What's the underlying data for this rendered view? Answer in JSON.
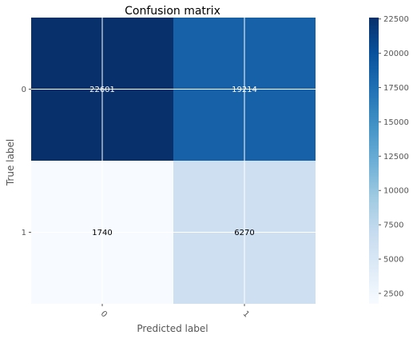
{
  "chart_data": {
    "type": "heatmap",
    "title": "Confusion matrix",
    "xlabel": "Predicted label",
    "ylabel": "True label",
    "x_categories": [
      "0",
      "1"
    ],
    "y_categories": [
      "0",
      "1"
    ],
    "values": [
      [
        22601,
        19214
      ],
      [
        1740,
        6270
      ]
    ],
    "colormap": "Blues",
    "vmin": 1740,
    "vmax": 22601,
    "grid": true,
    "x_tick_rotation": 45,
    "colorbar": {
      "ticks": [
        2500,
        5000,
        7500,
        10000,
        12500,
        15000,
        17500,
        20000,
        22500
      ],
      "tick_labels": [
        "2500",
        "5000",
        "7500",
        "10000",
        "12500",
        "15000",
        "17500",
        "20000",
        "22500"
      ]
    },
    "colors": {
      "cell_0_0": "#08306b",
      "cell_0_1": "#1761a8",
      "cell_1_0": "#f7fbff",
      "cell_1_1": "#cddff1",
      "grid": "#ffffff",
      "text_on_dark": "#ffffff",
      "text_on_light": "#000000"
    }
  }
}
